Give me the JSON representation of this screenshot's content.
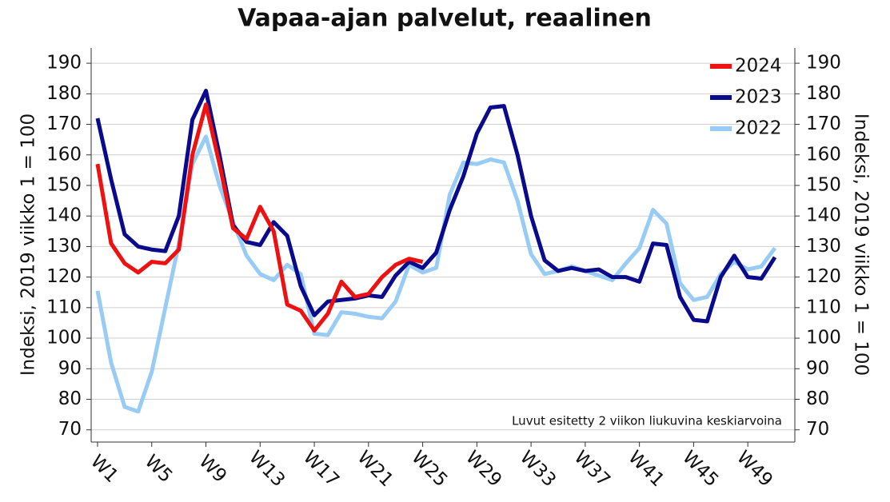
{
  "chart_data": {
    "type": "line",
    "title": "Vapaa-ajan palvelut, reaalinen",
    "y_label": "Indeksi, 2019 viikko 1 = 100",
    "y2_label": "Indeksi, 2019 viikko 1 = 100",
    "annotation": "Luvut esitetty 2 viikon liukuvina keskiarvoina",
    "categories": [
      "W1",
      null,
      null,
      null,
      "W5",
      null,
      null,
      null,
      "W9",
      null,
      null,
      null,
      "W13",
      null,
      null,
      null,
      "W17",
      null,
      null,
      null,
      "W21",
      null,
      null,
      null,
      "W25",
      null,
      null,
      null,
      "W29",
      null,
      null,
      null,
      "W33",
      null,
      null,
      null,
      "W37",
      null,
      null,
      null,
      "W41",
      null,
      null,
      null,
      "W45",
      null,
      null,
      null,
      "W49",
      null,
      null,
      null
    ],
    "series": [
      {
        "name": "2024",
        "color": "#ee1111",
        "values": [
          157,
          131,
          124.5,
          121.5,
          125,
          124.5,
          129,
          160,
          176.5,
          157,
          136,
          132.5,
          143,
          135,
          111,
          109,
          102.5,
          108,
          118.5,
          113.5,
          114.5,
          120,
          124,
          126,
          125,
          null,
          null,
          null,
          null,
          null,
          null,
          null,
          null,
          null,
          null,
          null,
          null,
          null,
          null,
          null,
          null,
          null,
          null,
          null,
          null,
          null,
          null,
          null,
          null,
          null,
          null,
          null
        ]
      },
      {
        "name": "2023",
        "color": "#0a0a8c",
        "values": [
          172,
          152,
          134,
          130,
          129,
          128.5,
          140,
          171.5,
          181,
          160,
          137,
          131.5,
          130.5,
          138,
          133.5,
          117,
          107.5,
          112,
          112.5,
          113,
          114,
          113.5,
          120.5,
          125,
          123,
          128,
          142,
          153,
          167,
          175.5,
          176,
          160,
          140,
          125.5,
          122,
          123,
          122,
          122.5,
          120,
          120,
          118.5,
          131,
          130.5,
          113.5,
          106,
          105.5,
          120,
          127,
          120,
          119.5,
          126.5,
          null
        ]
      },
      {
        "name": "2022",
        "color": "#99ccf5",
        "values": [
          115.5,
          92,
          77.5,
          76,
          89,
          110,
          131,
          157,
          166,
          150,
          138,
          127,
          121,
          119,
          124,
          121,
          101.5,
          101,
          108.5,
          108,
          107,
          106.5,
          112,
          124,
          121.5,
          123,
          147,
          157.5,
          157,
          158.5,
          157.5,
          145,
          127.5,
          121,
          122,
          123.5,
          122,
          120.5,
          119,
          124.5,
          129.5,
          142,
          137.5,
          118,
          112.5,
          113.5,
          121,
          125,
          122.5,
          123.5,
          129.5,
          null
        ]
      }
    ],
    "ylim": [
      66,
      195
    ],
    "yticks": [
      70,
      80,
      90,
      100,
      110,
      120,
      130,
      140,
      150,
      160,
      170,
      180,
      190
    ],
    "y2lim": [
      66,
      195
    ],
    "y2ticks": [
      70,
      80,
      90,
      100,
      110,
      120,
      130,
      140,
      150,
      160,
      170,
      180,
      190
    ],
    "grid": true,
    "legend": "top-right"
  }
}
